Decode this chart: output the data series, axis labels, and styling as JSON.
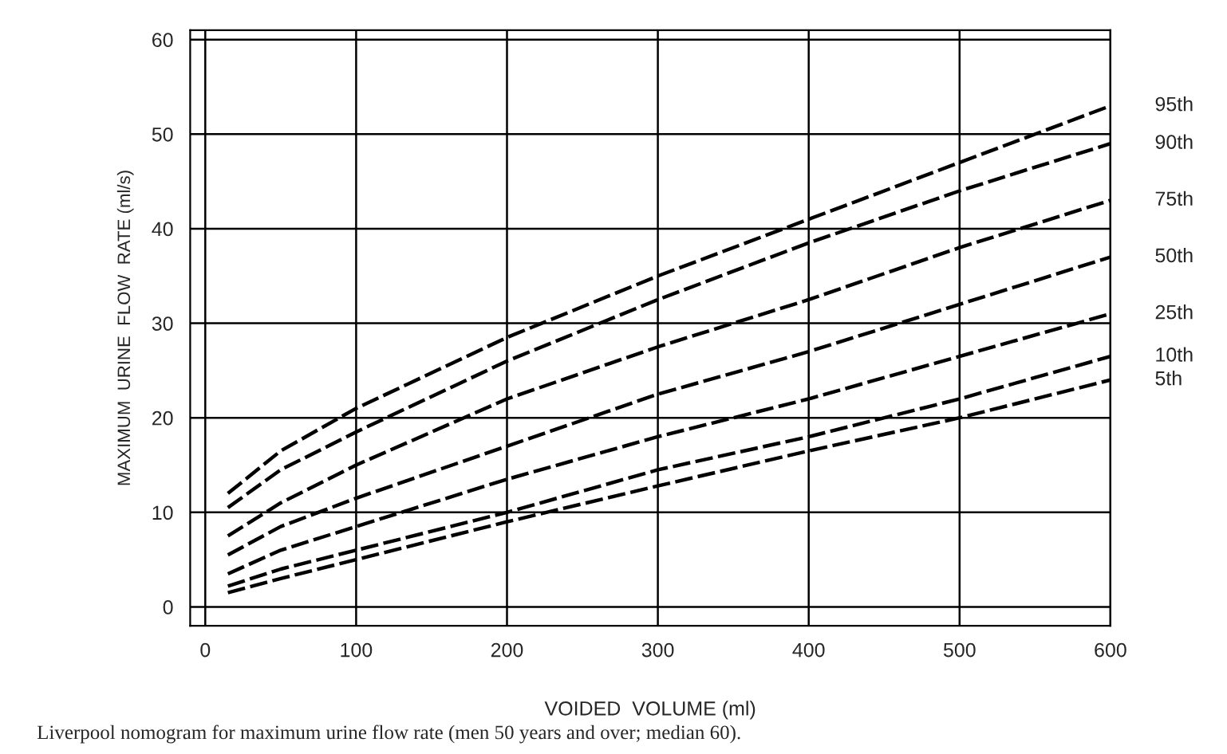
{
  "chart_data": {
    "type": "line",
    "xlabel": "VOIDED  VOLUME (ml)",
    "ylabel": "MAXIMUM  URINE  FLOW  RATE (ml/s)",
    "xlim": [
      -10,
      600
    ],
    "ylim": [
      -2,
      61
    ],
    "xticks": [
      0,
      100,
      200,
      300,
      400,
      500,
      600
    ],
    "yticks": [
      0,
      10,
      20,
      30,
      40,
      50,
      60
    ],
    "grid": true,
    "legend": false,
    "line_style": "dashed",
    "marker": "none",
    "x": [
      15,
      50,
      100,
      200,
      300,
      400,
      500,
      600
    ],
    "series": [
      {
        "name": "95th",
        "color": "#000000",
        "values": [
          12,
          16.5,
          21,
          28.5,
          35,
          41,
          47,
          53
        ]
      },
      {
        "name": "90th",
        "color": "#000000",
        "values": [
          10.5,
          14.5,
          18.5,
          26,
          32.5,
          38.5,
          44,
          49
        ]
      },
      {
        "name": "75th",
        "color": "#000000",
        "values": [
          7.5,
          11,
          15,
          22,
          27.5,
          32.5,
          38,
          43
        ]
      },
      {
        "name": "50th",
        "color": "#000000",
        "values": [
          5.5,
          8.5,
          11.5,
          17,
          22.5,
          27,
          32,
          37
        ]
      },
      {
        "name": "25th",
        "color": "#000000",
        "values": [
          3.5,
          6,
          8.5,
          13.5,
          18,
          22,
          26.5,
          31
        ]
      },
      {
        "name": "10th",
        "color": "#000000",
        "values": [
          2.2,
          4,
          6,
          10,
          14.5,
          18,
          22,
          26.5
        ]
      },
      {
        "name": "5th",
        "color": "#000000",
        "values": [
          1.5,
          3,
          5,
          9,
          12.8,
          16.5,
          20,
          24
        ]
      }
    ],
    "annotations": [
      "Liverpool nomogram for maximum urine flow rate (men 50 years and over; median 60)."
    ]
  }
}
